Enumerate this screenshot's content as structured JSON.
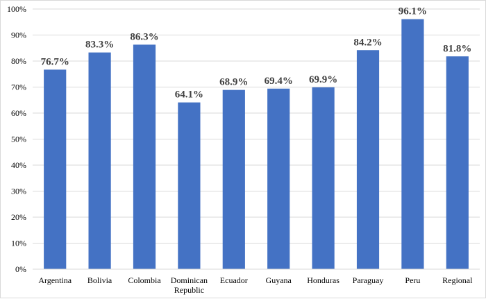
{
  "chart_data": {
    "type": "bar",
    "title": "",
    "xlabel": "",
    "ylabel": "",
    "categories": [
      "Argentina",
      "Bolivia",
      "Colombia",
      "Dominican Republic",
      "Ecuador",
      "Guyana",
      "Honduras",
      "Paraguay",
      "Peru",
      "Regional"
    ],
    "category_lines": [
      [
        "Argentina"
      ],
      [
        "Bolivia"
      ],
      [
        "Colombia"
      ],
      [
        "Dominican",
        "Republic"
      ],
      [
        "Ecuador"
      ],
      [
        "Guyana"
      ],
      [
        "Honduras"
      ],
      [
        "Paraguay"
      ],
      [
        "Peru"
      ],
      [
        "Regional"
      ]
    ],
    "values": [
      76.7,
      83.3,
      86.3,
      64.1,
      68.9,
      69.4,
      69.9,
      84.2,
      96.1,
      81.8
    ],
    "data_labels": [
      "76.7%",
      "83.3%",
      "86.3%",
      "64.1%",
      "68.9%",
      "69.4%",
      "69.9%",
      "84.2%",
      "96.1%",
      "81.8%"
    ],
    "ylim": [
      0,
      100
    ],
    "yticks": [
      0,
      10,
      20,
      30,
      40,
      50,
      60,
      70,
      80,
      90,
      100
    ],
    "ytick_labels": [
      "0%",
      "10%",
      "20%",
      "30%",
      "40%",
      "50%",
      "60%",
      "70%",
      "80%",
      "90%",
      "100%"
    ],
    "grid": true,
    "legend": "none",
    "bar_color": "#4472c4",
    "grid_color": "#d9d9d9"
  }
}
